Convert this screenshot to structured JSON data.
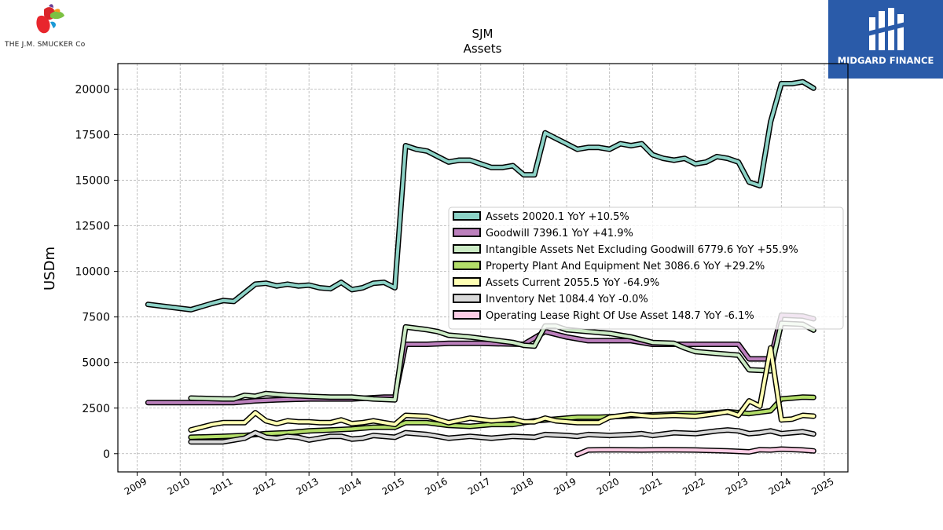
{
  "brand_left": {
    "text": "THE J.M. SMUCKER Co"
  },
  "brand_right": {
    "text": "MIDGARD FINANCE"
  },
  "chart_data": {
    "type": "line",
    "title": "SJM",
    "subtitle": "Assets",
    "xlabel": "",
    "ylabel": "USDm",
    "xlim": [
      2008.55,
      2025.55
    ],
    "ylim": [
      -1000,
      21400
    ],
    "xticks": [
      "2009",
      "2010",
      "2011",
      "2012",
      "2013",
      "2014",
      "2015",
      "2016",
      "2017",
      "2018",
      "2019",
      "2020",
      "2021",
      "2022",
      "2023",
      "2024",
      "2025"
    ],
    "yticks": [
      "0",
      "2500",
      "5000",
      "7500",
      "10000",
      "12500",
      "15000",
      "17500",
      "20000"
    ],
    "grid": true,
    "legend_position": "right",
    "series": [
      {
        "name": "Assets",
        "legend": "Assets  20020.1 YoY +10.5%",
        "color": "#8dd3c7",
        "points": [
          [
            2009.25,
            8190
          ],
          [
            2010.25,
            7900
          ],
          [
            2010.75,
            8250
          ],
          [
            2011.0,
            8400
          ],
          [
            2011.25,
            8350
          ],
          [
            2011.75,
            9300
          ],
          [
            2012.0,
            9350
          ],
          [
            2012.25,
            9200
          ],
          [
            2012.5,
            9300
          ],
          [
            2012.75,
            9200
          ],
          [
            2013.0,
            9250
          ],
          [
            2013.25,
            9100
          ],
          [
            2013.5,
            9050
          ],
          [
            2013.75,
            9400
          ],
          [
            2014.0,
            9000
          ],
          [
            2014.25,
            9100
          ],
          [
            2014.5,
            9350
          ],
          [
            2014.75,
            9400
          ],
          [
            2015.0,
            9100
          ],
          [
            2015.25,
            16900
          ],
          [
            2015.5,
            16700
          ],
          [
            2015.75,
            16600
          ],
          [
            2016.0,
            16300
          ],
          [
            2016.25,
            16000
          ],
          [
            2016.5,
            16100
          ],
          [
            2016.75,
            16100
          ],
          [
            2017.0,
            15900
          ],
          [
            2017.25,
            15700
          ],
          [
            2017.5,
            15700
          ],
          [
            2017.75,
            15800
          ],
          [
            2018.0,
            15300
          ],
          [
            2018.25,
            15300
          ],
          [
            2018.5,
            17600
          ],
          [
            2018.75,
            17300
          ],
          [
            2019.0,
            17000
          ],
          [
            2019.25,
            16700
          ],
          [
            2019.5,
            16800
          ],
          [
            2019.75,
            16800
          ],
          [
            2020.0,
            16700
          ],
          [
            2020.25,
            17000
          ],
          [
            2020.5,
            16900
          ],
          [
            2020.75,
            17000
          ],
          [
            2021.0,
            16400
          ],
          [
            2021.25,
            16200
          ],
          [
            2021.5,
            16100
          ],
          [
            2021.75,
            16200
          ],
          [
            2022.0,
            15900
          ],
          [
            2022.25,
            16000
          ],
          [
            2022.5,
            16300
          ],
          [
            2022.75,
            16200
          ],
          [
            2023.0,
            16000
          ],
          [
            2023.25,
            14900
          ],
          [
            2023.5,
            14700
          ],
          [
            2023.75,
            18200
          ],
          [
            2024.0,
            20300
          ],
          [
            2024.25,
            20300
          ],
          [
            2024.5,
            20400
          ],
          [
            2024.75,
            20050
          ]
        ]
      },
      {
        "name": "Goodwill",
        "legend": "Goodwill  7396.1 YoY +41.9%",
        "color": "#bc80bd",
        "points": [
          [
            2009.25,
            2800
          ],
          [
            2010.25,
            2800
          ],
          [
            2010.75,
            2800
          ],
          [
            2011.25,
            2800
          ],
          [
            2011.75,
            2900
          ],
          [
            2012.25,
            2950
          ],
          [
            2013.0,
            3000
          ],
          [
            2014.0,
            3000
          ],
          [
            2014.75,
            3100
          ],
          [
            2015.0,
            3100
          ],
          [
            2015.25,
            6000
          ],
          [
            2015.75,
            6000
          ],
          [
            2016.25,
            6050
          ],
          [
            2017.0,
            6050
          ],
          [
            2018.0,
            6000
          ],
          [
            2018.5,
            6700
          ],
          [
            2019.0,
            6400
          ],
          [
            2019.5,
            6200
          ],
          [
            2020.5,
            6200
          ],
          [
            2021.0,
            6000
          ],
          [
            2022.0,
            6000
          ],
          [
            2022.5,
            6000
          ],
          [
            2023.0,
            6000
          ],
          [
            2023.25,
            5200
          ],
          [
            2023.75,
            5200
          ],
          [
            2024.0,
            7600
          ],
          [
            2024.5,
            7550
          ],
          [
            2024.75,
            7400
          ]
        ]
      },
      {
        "name": "Intangible Assets Net Excluding Goodwill",
        "legend": "Intangible Assets Net Excluding Goodwill  6779.6 YoY +55.9%",
        "color": "#ccebc5",
        "points": [
          [
            2010.25,
            3050
          ],
          [
            2011.0,
            3000
          ],
          [
            2011.25,
            3000
          ],
          [
            2011.5,
            3200
          ],
          [
            2011.75,
            3150
          ],
          [
            2012.0,
            3300
          ],
          [
            2012.5,
            3200
          ],
          [
            2013.0,
            3150
          ],
          [
            2013.5,
            3100
          ],
          [
            2014.0,
            3100
          ],
          [
            2014.5,
            3000
          ],
          [
            2015.0,
            2950
          ],
          [
            2015.25,
            6950
          ],
          [
            2015.75,
            6800
          ],
          [
            2016.0,
            6700
          ],
          [
            2016.25,
            6500
          ],
          [
            2016.75,
            6400
          ],
          [
            2017.25,
            6250
          ],
          [
            2017.75,
            6100
          ],
          [
            2018.0,
            5950
          ],
          [
            2018.25,
            5900
          ],
          [
            2018.5,
            7000
          ],
          [
            2018.75,
            7000
          ],
          [
            2019.0,
            6800
          ],
          [
            2019.5,
            6700
          ],
          [
            2020.0,
            6600
          ],
          [
            2020.5,
            6400
          ],
          [
            2021.0,
            6100
          ],
          [
            2021.5,
            6050
          ],
          [
            2021.75,
            5800
          ],
          [
            2022.0,
            5600
          ],
          [
            2022.5,
            5500
          ],
          [
            2023.0,
            5400
          ],
          [
            2023.25,
            4600
          ],
          [
            2023.75,
            4550
          ],
          [
            2024.0,
            7150
          ],
          [
            2024.5,
            7100
          ],
          [
            2024.75,
            6780
          ]
        ]
      },
      {
        "name": "Property Plant And Equipment Net",
        "legend": "Property Plant And Equipment Net  3086.6 YoY +29.2%",
        "color": "#b3de69",
        "points": [
          [
            2010.25,
            900
          ],
          [
            2011.0,
            950
          ],
          [
            2011.5,
            1000
          ],
          [
            2012.0,
            1100
          ],
          [
            2012.5,
            1150
          ],
          [
            2013.0,
            1250
          ],
          [
            2013.5,
            1300
          ],
          [
            2014.0,
            1350
          ],
          [
            2014.5,
            1450
          ],
          [
            2015.0,
            1450
          ],
          [
            2015.25,
            1700
          ],
          [
            2015.75,
            1700
          ],
          [
            2016.25,
            1550
          ],
          [
            2016.75,
            1500
          ],
          [
            2017.25,
            1600
          ],
          [
            2017.75,
            1600
          ],
          [
            2018.25,
            1800
          ],
          [
            2018.75,
            1900
          ],
          [
            2019.25,
            2000
          ],
          [
            2019.75,
            2000
          ],
          [
            2020.25,
            2050
          ],
          [
            2020.75,
            2100
          ],
          [
            2021.25,
            2150
          ],
          [
            2021.75,
            2200
          ],
          [
            2022.25,
            2200
          ],
          [
            2022.75,
            2300
          ],
          [
            2023.25,
            2200
          ],
          [
            2023.75,
            2350
          ],
          [
            2024.0,
            3000
          ],
          [
            2024.5,
            3100
          ],
          [
            2024.75,
            3090
          ]
        ]
      },
      {
        "name": "Assets Current",
        "legend": "Assets Current  2055.5 YoY -64.9%",
        "color": "#ffffb3",
        "points": [
          [
            2010.25,
            1300
          ],
          [
            2010.75,
            1600
          ],
          [
            2011.0,
            1700
          ],
          [
            2011.25,
            1700
          ],
          [
            2011.5,
            1700
          ],
          [
            2011.75,
            2250
          ],
          [
            2012.0,
            1800
          ],
          [
            2012.25,
            1650
          ],
          [
            2012.5,
            1800
          ],
          [
            2012.75,
            1750
          ],
          [
            2013.0,
            1750
          ],
          [
            2013.25,
            1700
          ],
          [
            2013.5,
            1700
          ],
          [
            2013.75,
            1850
          ],
          [
            2014.0,
            1650
          ],
          [
            2014.25,
            1700
          ],
          [
            2014.5,
            1800
          ],
          [
            2014.75,
            1700
          ],
          [
            2015.0,
            1600
          ],
          [
            2015.25,
            2100
          ],
          [
            2015.75,
            2050
          ],
          [
            2016.25,
            1700
          ],
          [
            2016.75,
            1950
          ],
          [
            2017.25,
            1800
          ],
          [
            2017.75,
            1900
          ],
          [
            2018.0,
            1750
          ],
          [
            2018.25,
            1750
          ],
          [
            2018.5,
            1950
          ],
          [
            2018.75,
            1800
          ],
          [
            2019.25,
            1700
          ],
          [
            2019.75,
            1700
          ],
          [
            2020.0,
            2000
          ],
          [
            2020.5,
            2150
          ],
          [
            2021.0,
            2050
          ],
          [
            2021.5,
            2100
          ],
          [
            2022.0,
            2050
          ],
          [
            2022.5,
            2200
          ],
          [
            2022.75,
            2300
          ],
          [
            2023.0,
            2100
          ],
          [
            2023.25,
            2900
          ],
          [
            2023.5,
            2600
          ],
          [
            2023.75,
            5800
          ],
          [
            2024.0,
            1850
          ],
          [
            2024.25,
            1900
          ],
          [
            2024.5,
            2100
          ],
          [
            2024.75,
            2060
          ]
        ]
      },
      {
        "name": "Inventory Net",
        "legend": "Inventory Net  1084.4 YoY -0.0%",
        "color": "#d9d9d9",
        "points": [
          [
            2010.25,
            650
          ],
          [
            2011.0,
            650
          ],
          [
            2011.25,
            750
          ],
          [
            2011.5,
            850
          ],
          [
            2011.75,
            1150
          ],
          [
            2012.0,
            900
          ],
          [
            2012.25,
            850
          ],
          [
            2012.5,
            950
          ],
          [
            2012.75,
            900
          ],
          [
            2013.0,
            750
          ],
          [
            2013.5,
            950
          ],
          [
            2013.75,
            950
          ],
          [
            2014.0,
            800
          ],
          [
            2014.25,
            850
          ],
          [
            2014.5,
            1000
          ],
          [
            2014.75,
            950
          ],
          [
            2015.0,
            900
          ],
          [
            2015.25,
            1150
          ],
          [
            2015.75,
            1050
          ],
          [
            2016.0,
            950
          ],
          [
            2016.25,
            850
          ],
          [
            2016.75,
            950
          ],
          [
            2017.25,
            850
          ],
          [
            2017.75,
            950
          ],
          [
            2018.25,
            900
          ],
          [
            2018.5,
            1050
          ],
          [
            2019.0,
            1000
          ],
          [
            2019.25,
            950
          ],
          [
            2019.5,
            1050
          ],
          [
            2020.0,
            1000
          ],
          [
            2020.5,
            1050
          ],
          [
            2020.75,
            1100
          ],
          [
            2021.0,
            1000
          ],
          [
            2021.5,
            1150
          ],
          [
            2022.0,
            1100
          ],
          [
            2022.5,
            1250
          ],
          [
            2022.75,
            1300
          ],
          [
            2023.0,
            1250
          ],
          [
            2023.25,
            1100
          ],
          [
            2023.5,
            1150
          ],
          [
            2023.75,
            1250
          ],
          [
            2024.0,
            1100
          ],
          [
            2024.5,
            1200
          ],
          [
            2024.75,
            1080
          ]
        ]
      },
      {
        "name": "Operating Lease Right Of Use Asset",
        "legend": "Operating Lease Right Of Use Asset  148.7 YoY -6.1%",
        "color": "#fccde5",
        "points": [
          [
            2019.25,
            -50
          ],
          [
            2019.5,
            200
          ],
          [
            2020.0,
            220
          ],
          [
            2020.75,
            200
          ],
          [
            2021.25,
            220
          ],
          [
            2022.0,
            200
          ],
          [
            2022.75,
            150
          ],
          [
            2023.25,
            100
          ],
          [
            2023.5,
            220
          ],
          [
            2023.75,
            200
          ],
          [
            2024.0,
            250
          ],
          [
            2024.5,
            200
          ],
          [
            2024.75,
            150
          ]
        ]
      }
    ]
  }
}
